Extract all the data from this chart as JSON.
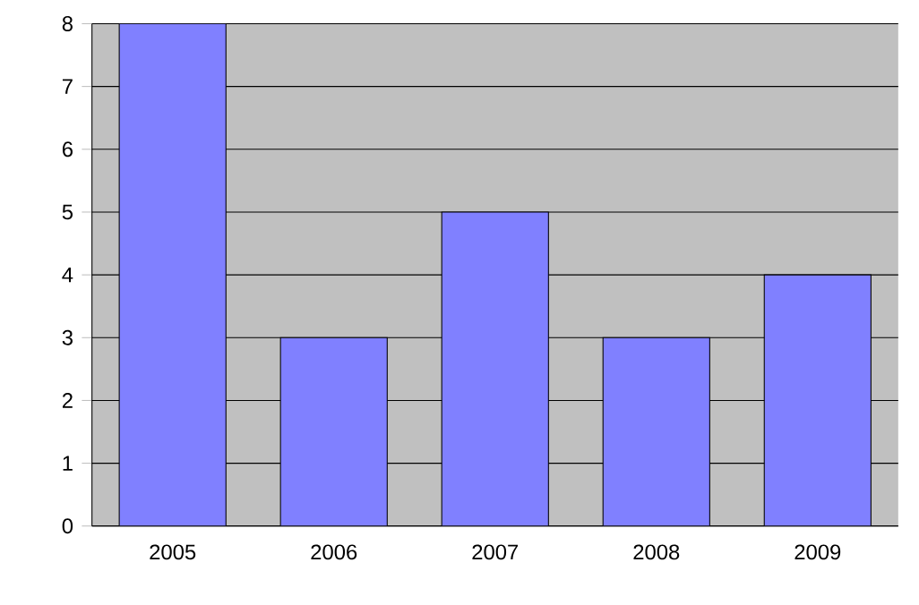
{
  "chart_data": {
    "type": "bar",
    "categories": [
      "2005",
      "2006",
      "2007",
      "2008",
      "2009"
    ],
    "values": [
      8,
      3,
      5,
      3,
      4
    ],
    "color": "#8080ff",
    "ylim": [
      0,
      8
    ],
    "yticks": [
      0,
      1,
      2,
      3,
      4,
      5,
      6,
      7,
      8
    ],
    "grid": "y"
  }
}
